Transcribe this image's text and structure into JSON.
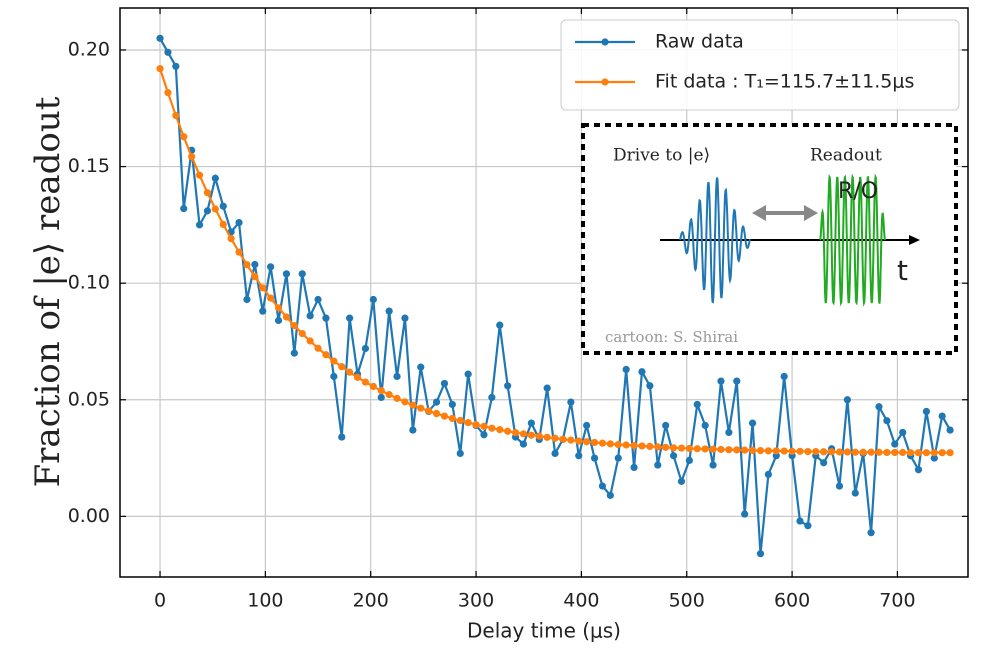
{
  "chart_data": {
    "type": "line",
    "xlabel": "Delay time (μs)",
    "ylabel": "Fraction of |e⟩ readout",
    "x": [
      0,
      7.5,
      15,
      22.5,
      30,
      37.5,
      45,
      52.5,
      60,
      67.5,
      75,
      82.5,
      90,
      97.5,
      105,
      112.5,
      120,
      127.5,
      135,
      142.5,
      150,
      157.5,
      165,
      172.5,
      180,
      187.5,
      195,
      202.5,
      210,
      217.5,
      225,
      232.5,
      240,
      247.5,
      255,
      262.5,
      270,
      277.5,
      285,
      292.5,
      300,
      307.5,
      315,
      322.5,
      330,
      337.5,
      345,
      352.5,
      360,
      367.5,
      375,
      382.5,
      390,
      397.5,
      405,
      412.5,
      420,
      427.5,
      435,
      442.5,
      450,
      457.5,
      465,
      472.5,
      480,
      487.5,
      495,
      502.5,
      510,
      517.5,
      525,
      532.5,
      540,
      547.5,
      555,
      562.5,
      570,
      577.5,
      585,
      592.5,
      600,
      607.5,
      615,
      622.5,
      630,
      637.5,
      645,
      652.5,
      660,
      667.5,
      675,
      682.5,
      690,
      697.5,
      705,
      712.5,
      720,
      727.5,
      735,
      742.5,
      750
    ],
    "series": [
      {
        "name": "Raw data",
        "color": "#1f77b4",
        "values": [
          0.205,
          0.199,
          0.193,
          0.132,
          0.157,
          0.125,
          0.131,
          0.145,
          0.133,
          0.122,
          0.126,
          0.093,
          0.108,
          0.088,
          0.107,
          0.084,
          0.104,
          0.07,
          0.104,
          0.086,
          0.093,
          0.085,
          0.06,
          0.034,
          0.085,
          0.061,
          0.072,
          0.093,
          0.051,
          0.088,
          0.06,
          0.085,
          0.037,
          0.064,
          0.045,
          0.049,
          0.057,
          0.048,
          0.027,
          0.061,
          0.039,
          0.035,
          0.051,
          0.082,
          0.056,
          0.034,
          0.031,
          0.04,
          0.033,
          0.055,
          0.027,
          0.033,
          0.049,
          0.026,
          0.039,
          0.025,
          0.013,
          0.009,
          0.025,
          0.063,
          0.021,
          0.062,
          0.056,
          0.022,
          0.039,
          0.026,
          0.015,
          0.024,
          0.048,
          0.039,
          0.022,
          0.058,
          0.036,
          0.058,
          0.001,
          0.04,
          -0.016,
          0.018,
          0.026,
          0.06,
          0.026,
          -0.002,
          -0.004,
          0.026,
          0.023,
          0.029,
          0.013,
          0.05,
          0.01,
          0.027,
          -0.007,
          0.047,
          0.041,
          0.031,
          0.036,
          0.026,
          0.02,
          0.045,
          0.025,
          0.043,
          0.037
        ]
      },
      {
        "name": "Fit data : T₁=115.7±11.5μs",
        "color": "#ff7f0e",
        "values": [
          0.192,
          0.1817,
          0.1719,
          0.1628,
          0.1543,
          0.1463,
          0.1388,
          0.1318,
          0.1252,
          0.1191,
          0.1133,
          0.1079,
          0.1028,
          0.098,
          0.0936,
          0.0894,
          0.0855,
          0.0818,
          0.0784,
          0.0752,
          0.0721,
          0.0693,
          0.0666,
          0.0642,
          0.0618,
          0.0596,
          0.0576,
          0.0557,
          0.0539,
          0.0522,
          0.0506,
          0.0491,
          0.0477,
          0.0464,
          0.0452,
          0.0441,
          0.043,
          0.042,
          0.0411,
          0.0402,
          0.0393,
          0.0386,
          0.0378,
          0.0372,
          0.0365,
          0.0359,
          0.0354,
          0.0348,
          0.0344,
          0.0339,
          0.0335,
          0.0331,
          0.0327,
          0.0323,
          0.032,
          0.0317,
          0.0314,
          0.0311,
          0.0308,
          0.0306,
          0.0304,
          0.0302,
          0.03,
          0.0298,
          0.0296,
          0.0294,
          0.0293,
          0.0291,
          0.029,
          0.0289,
          0.0288,
          0.0287,
          0.0286,
          0.0285,
          0.0284,
          0.0283,
          0.0282,
          0.0281,
          0.0281,
          0.028,
          0.0279,
          0.0279,
          0.0278,
          0.0278,
          0.0277,
          0.0277,
          0.0276,
          0.0276,
          0.0275,
          0.0275,
          0.0275,
          0.0275,
          0.0274,
          0.0274,
          0.0274,
          0.0273,
          0.0273,
          0.0273,
          0.0273,
          0.0273,
          0.0273
        ]
      }
    ],
    "xlim": [
      -38,
      767
    ],
    "ylim": [
      -0.026,
      0.218
    ],
    "xticks": [
      0,
      100,
      200,
      300,
      400,
      500,
      600,
      700
    ],
    "yticks": [
      {
        "value": 0,
        "label": "0.00"
      },
      0.05,
      {
        "value": 0.1,
        "label": "0.10"
      },
      0.15,
      {
        "value": 0.2,
        "label": "0.20"
      }
    ],
    "grid": true,
    "legend": "upper right",
    "inset": {
      "drive_label": "Drive to |e⟩",
      "readout_label": "Readout",
      "ro_label": "R/O",
      "axis_label": "t",
      "credit": "cartoon: S. Shirai"
    }
  }
}
